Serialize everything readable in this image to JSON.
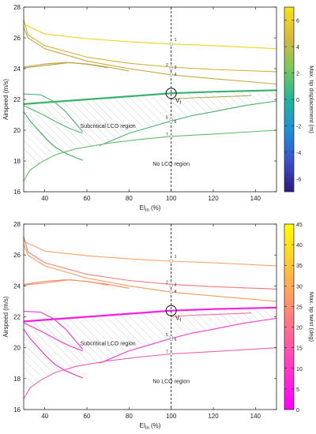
{
  "chart_data": [
    {
      "type": "line",
      "xlabel": "EI",
      "xlabel_sub": "in",
      "xlabel_unit": "(%)",
      "ylabel": "Airspeed (m/s)",
      "xlim": [
        30,
        150
      ],
      "ylim": [
        16,
        28
      ],
      "xticks": [
        "40",
        "60",
        "80",
        "100",
        "120",
        "140"
      ],
      "yticks": [
        "16",
        "18",
        "20",
        "22",
        "24",
        "26",
        "28"
      ],
      "colorbar": {
        "label": "Max. tip displacement (m)",
        "range": [
          -7,
          7
        ],
        "ticks": [
          "-6",
          "-4",
          "-2",
          "0",
          "2",
          "4",
          "6"
        ],
        "colors": [
          "#2e1a7a",
          "#3b52cc",
          "#1e8fd6",
          "#22b59a",
          "#7cc65a",
          "#d8b83e",
          "#f7e21a"
        ]
      },
      "annotations": {
        "subcritical": "Subcritical LCO region",
        "no_lco": "No LCO region",
        "vf": "V",
        "vf_sub": "f",
        "vline_x": 100,
        "circle_point": [
          100,
          22.4
        ],
        "point_labels": [
          "1",
          "2",
          "3",
          "4",
          "5",
          "6",
          "7"
        ]
      },
      "series": [
        {
          "color": "#f2d31b",
          "width": 1.1,
          "values": [
            [
              30,
              26.9
            ],
            [
              40,
              26.25
            ],
            [
              60,
              25.95
            ],
            [
              80,
              25.75
            ],
            [
              100,
              25.6
            ],
            [
              120,
              25.5
            ],
            [
              150,
              25.3
            ]
          ]
        },
        {
          "color": "#d6b13e",
          "width": 1.1,
          "values": [
            [
              30,
              27.2
            ],
            [
              32,
              26.2
            ],
            [
              40,
              25.5
            ],
            [
              60,
              24.75
            ],
            [
              80,
              24.35
            ],
            [
              100,
              24.1
            ],
            [
              120,
              23.95
            ],
            [
              150,
              23.8
            ]
          ]
        },
        {
          "color": "#c9a844",
          "width": 1.1,
          "values": [
            [
              30,
              26.7
            ],
            [
              32,
              26.0
            ],
            [
              40,
              25.3
            ],
            [
              60,
              24.5
            ],
            [
              80,
              24.0
            ],
            [
              100,
              23.6
            ],
            [
              120,
              23.35
            ],
            [
              150,
              23.0
            ]
          ]
        },
        {
          "color": "#c4a340",
          "width": 1.1,
          "values": [
            [
              30,
              24.1
            ],
            [
              40,
              24.3
            ],
            [
              50,
              24.4
            ],
            [
              60,
              24.3
            ],
            [
              70,
              24.1
            ],
            [
              80,
              23.85
            ]
          ]
        },
        {
          "color": "#b6a24a",
          "width": 1.1,
          "values": [
            [
              30,
              24.05
            ],
            [
              40,
              24.2
            ],
            [
              52,
              24.4
            ],
            [
              62,
              24.25
            ],
            [
              70,
              24.05
            ]
          ]
        },
        {
          "color": "#38b26e",
          "width": 2.2,
          "values": [
            [
              30,
              21.7
            ],
            [
              40,
              21.8
            ],
            [
              60,
              22.0
            ],
            [
              80,
              22.2
            ],
            [
              100,
              22.4
            ],
            [
              120,
              22.5
            ],
            [
              150,
              22.6
            ]
          ]
        },
        {
          "color": "#a8a955",
          "width": 1.1,
          "values": [
            [
              100,
              22.0
            ],
            [
              110,
              22.1
            ],
            [
              120,
              22.15
            ],
            [
              130,
              22.2
            ],
            [
              138,
              22.25
            ]
          ]
        },
        {
          "color": "#55b574",
          "width": 1.1,
          "values": [
            [
              30,
              22.35
            ],
            [
              38,
              22.3
            ],
            [
              44,
              21.9
            ],
            [
              50,
              21.2
            ],
            [
              58,
              19.9
            ]
          ]
        },
        {
          "color": "#55b574",
          "width": 1.1,
          "values": [
            [
              30,
              21.6
            ],
            [
              34,
              21.35
            ],
            [
              40,
              20.95
            ],
            [
              46,
              20.5
            ],
            [
              52,
              20.1
            ],
            [
              58,
              19.8
            ]
          ]
        },
        {
          "color": "#44a868",
          "width": 1.1,
          "values": [
            [
              30,
              21.2
            ],
            [
              33,
              20.6
            ],
            [
              37,
              20.0
            ],
            [
              41,
              19.4
            ],
            [
              45,
              18.9
            ],
            [
              50,
              18.5
            ],
            [
              55,
              18.2
            ],
            [
              58,
              18.05
            ]
          ]
        },
        {
          "color": "#4caf6c",
          "width": 1.1,
          "values": [
            [
              66,
              19.0
            ],
            [
              80,
              19.8
            ],
            [
              90,
              20.2
            ],
            [
              100,
              20.6
            ],
            [
              110,
              20.95
            ],
            [
              120,
              21.2
            ],
            [
              135,
              21.6
            ],
            [
              150,
              21.9
            ]
          ]
        },
        {
          "color": "#66bb6a",
          "width": 1.1,
          "values": [
            [
              30,
              16.7
            ],
            [
              33,
              17.4
            ],
            [
              38,
              17.9
            ],
            [
              45,
              18.4
            ],
            [
              55,
              18.8
            ],
            [
              70,
              19.15
            ],
            [
              85,
              19.4
            ],
            [
              100,
              19.6
            ],
            [
              120,
              19.75
            ],
            [
              150,
              20.0
            ]
          ]
        }
      ],
      "hatch_region": [
        [
          30,
          21.7
        ],
        [
          40,
          21.8
        ],
        [
          60,
          22.0
        ],
        [
          80,
          22.2
        ],
        [
          100,
          22.4
        ],
        [
          120,
          22.5
        ],
        [
          150,
          22.6
        ],
        [
          150,
          21.9
        ],
        [
          135,
          21.6
        ],
        [
          120,
          21.2
        ],
        [
          110,
          20.95
        ],
        [
          100,
          20.6
        ],
        [
          90,
          20.2
        ],
        [
          80,
          19.8
        ],
        [
          66,
          19.0
        ],
        [
          55,
          18.8
        ],
        [
          45,
          18.4
        ],
        [
          38,
          17.9
        ],
        [
          33,
          17.4
        ],
        [
          30,
          16.7
        ]
      ],
      "markers": [
        [
          100,
          25.6
        ],
        [
          100,
          24.1
        ],
        [
          100,
          24.0
        ],
        [
          100,
          23.6
        ],
        [
          100,
          20.7
        ],
        [
          100,
          20.55
        ],
        [
          100,
          19.6
        ]
      ]
    },
    {
      "type": "line",
      "xlabel": "EI",
      "xlabel_sub": "in",
      "xlabel_unit": "(%)",
      "ylabel": "Airspeed (m/s)",
      "xlim": [
        30,
        150
      ],
      "ylim": [
        16,
        28
      ],
      "xticks": [
        "40",
        "60",
        "80",
        "100",
        "120",
        "140"
      ],
      "yticks": [
        "16",
        "18",
        "20",
        "22",
        "24",
        "26",
        "28"
      ],
      "colorbar": {
        "label": "Max. tip twist (deg)",
        "range": [
          0,
          45
        ],
        "ticks": [
          "0",
          "5",
          "10",
          "15",
          "20",
          "25",
          "30",
          "35",
          "40",
          "45"
        ],
        "colors": [
          "#ff00ff",
          "#ff3fc0",
          "#ff7f7f",
          "#ffbf40",
          "#ffff00"
        ]
      },
      "annotations": {
        "subcritical": "Subcritical LCO region",
        "no_lco": "No LCO region",
        "vf": "V",
        "vf_sub": "f",
        "vline_x": 100,
        "circle_point": [
          100,
          22.4
        ],
        "point_labels": [
          "1",
          "2",
          "3",
          "4",
          "5",
          "6",
          "7"
        ]
      },
      "series": [
        {
          "color": "#f7a36a",
          "width": 1.1,
          "values": [
            [
              30,
              26.9
            ],
            [
              40,
              26.25
            ],
            [
              60,
              25.95
            ],
            [
              80,
              25.75
            ],
            [
              100,
              25.6
            ],
            [
              120,
              25.5
            ],
            [
              150,
              25.3
            ]
          ]
        },
        {
          "color": "#f47a78",
          "width": 1.1,
          "values": [
            [
              30,
              27.2
            ],
            [
              32,
              26.2
            ],
            [
              40,
              25.5
            ],
            [
              60,
              24.75
            ],
            [
              80,
              24.35
            ],
            [
              100,
              24.1
            ],
            [
              120,
              23.95
            ],
            [
              150,
              23.8
            ]
          ]
        },
        {
          "color": "#f59a58",
          "width": 1.1,
          "values": [
            [
              30,
              26.7
            ],
            [
              32,
              26.0
            ],
            [
              40,
              25.3
            ],
            [
              60,
              24.5
            ],
            [
              80,
              24.0
            ],
            [
              100,
              23.6
            ],
            [
              120,
              23.35
            ],
            [
              150,
              23.0
            ]
          ]
        },
        {
          "color": "#f38862",
          "width": 1.1,
          "values": [
            [
              30,
              24.1
            ],
            [
              40,
              24.3
            ],
            [
              50,
              24.4
            ],
            [
              60,
              24.3
            ],
            [
              70,
              24.1
            ],
            [
              80,
              23.85
            ]
          ]
        },
        {
          "color": "#f08f6a",
          "width": 1.1,
          "values": [
            [
              30,
              24.05
            ],
            [
              40,
              24.2
            ],
            [
              52,
              24.4
            ],
            [
              62,
              24.25
            ],
            [
              70,
              24.05
            ]
          ]
        },
        {
          "color": "#f51ee6",
          "width": 2.2,
          "values": [
            [
              30,
              21.7
            ],
            [
              40,
              21.8
            ],
            [
              60,
              22.0
            ],
            [
              80,
              22.2
            ],
            [
              100,
              22.4
            ],
            [
              120,
              22.5
            ],
            [
              150,
              22.6
            ]
          ]
        },
        {
          "color": "#f36fa0",
          "width": 1.1,
          "values": [
            [
              100,
              22.0
            ],
            [
              110,
              22.1
            ],
            [
              120,
              22.15
            ],
            [
              130,
              22.2
            ],
            [
              138,
              22.25
            ]
          ]
        },
        {
          "color": "#ee38d0",
          "width": 1.1,
          "values": [
            [
              30,
              22.35
            ],
            [
              38,
              22.3
            ],
            [
              44,
              21.9
            ],
            [
              50,
              21.2
            ],
            [
              58,
              19.9
            ]
          ]
        },
        {
          "color": "#ee38d0",
          "width": 1.1,
          "values": [
            [
              30,
              21.6
            ],
            [
              34,
              21.35
            ],
            [
              40,
              20.95
            ],
            [
              46,
              20.5
            ],
            [
              52,
              20.1
            ],
            [
              58,
              19.8
            ]
          ]
        },
        {
          "color": "#e52fc4",
          "width": 1.1,
          "values": [
            [
              30,
              21.2
            ],
            [
              33,
              20.6
            ],
            [
              37,
              20.0
            ],
            [
              41,
              19.4
            ],
            [
              45,
              18.9
            ],
            [
              50,
              18.5
            ],
            [
              55,
              18.2
            ],
            [
              58,
              18.05
            ]
          ]
        },
        {
          "color": "#ec3ccb",
          "width": 1.1,
          "values": [
            [
              66,
              19.0
            ],
            [
              80,
              19.8
            ],
            [
              90,
              20.2
            ],
            [
              100,
              20.6
            ],
            [
              110,
              20.95
            ],
            [
              120,
              21.2
            ],
            [
              135,
              21.6
            ],
            [
              150,
              21.9
            ]
          ]
        },
        {
          "color": "#f25fb0",
          "width": 1.1,
          "values": [
            [
              30,
              16.7
            ],
            [
              33,
              17.4
            ],
            [
              38,
              17.9
            ],
            [
              45,
              18.4
            ],
            [
              55,
              18.8
            ],
            [
              70,
              19.15
            ],
            [
              85,
              19.4
            ],
            [
              100,
              19.6
            ],
            [
              120,
              19.75
            ],
            [
              150,
              20.0
            ]
          ]
        }
      ],
      "hatch_region": [
        [
          30,
          21.7
        ],
        [
          40,
          21.8
        ],
        [
          60,
          22.0
        ],
        [
          80,
          22.2
        ],
        [
          100,
          22.4
        ],
        [
          120,
          22.5
        ],
        [
          150,
          22.6
        ],
        [
          150,
          21.9
        ],
        [
          135,
          21.6
        ],
        [
          120,
          21.2
        ],
        [
          110,
          20.95
        ],
        [
          100,
          20.6
        ],
        [
          90,
          20.2
        ],
        [
          80,
          19.8
        ],
        [
          66,
          19.0
        ],
        [
          55,
          18.8
        ],
        [
          45,
          18.4
        ],
        [
          38,
          17.9
        ],
        [
          33,
          17.4
        ],
        [
          30,
          16.7
        ]
      ],
      "markers": [
        [
          100,
          25.6
        ],
        [
          100,
          24.1
        ],
        [
          100,
          24.0
        ],
        [
          100,
          23.6
        ],
        [
          100,
          20.7
        ],
        [
          100,
          20.55
        ],
        [
          100,
          19.6
        ]
      ]
    }
  ]
}
